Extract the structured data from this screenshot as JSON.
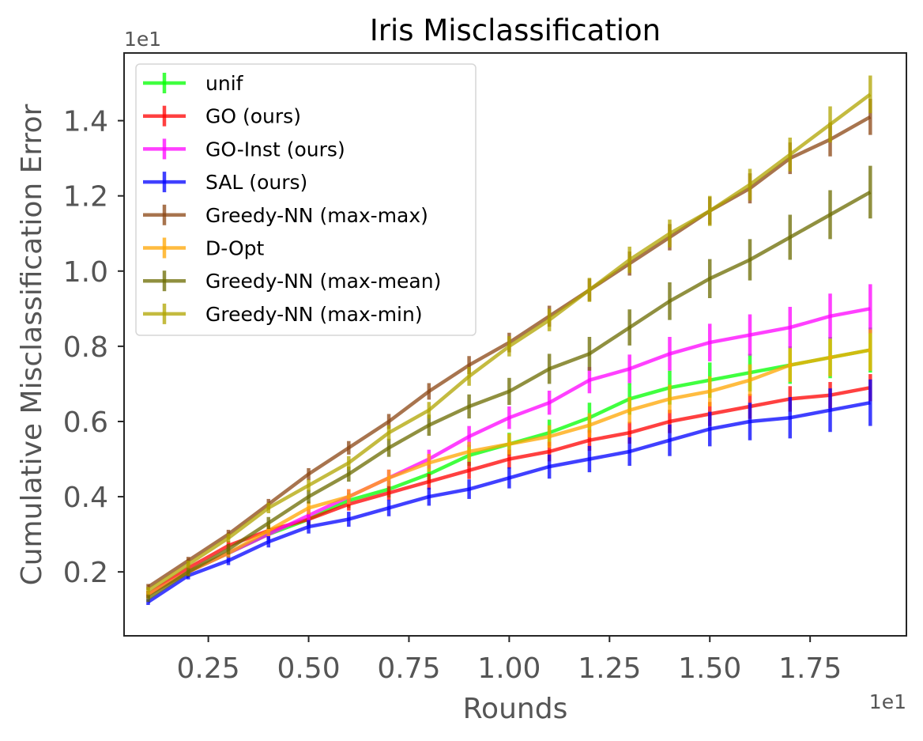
{
  "chart_data": {
    "type": "line",
    "title": "Iris Misclassification",
    "xlabel": "Rounds",
    "ylabel": "Cumulative Misclassification Error",
    "x_offset_text": "1e1",
    "y_offset_text": "1e1",
    "xlim": [
      0.04,
      1.99
    ],
    "ylim": [
      0.03,
      1.58
    ],
    "xticks": [
      0.25,
      0.5,
      0.75,
      1.0,
      1.25,
      1.5,
      1.75
    ],
    "xtick_labels": [
      "0.25",
      "0.50",
      "0.75",
      "1.00",
      "1.25",
      "1.50",
      "1.75"
    ],
    "yticks": [
      0.2,
      0.4,
      0.6,
      0.8,
      1.0,
      1.2,
      1.4
    ],
    "ytick_labels": [
      "0.2",
      "0.4",
      "0.6",
      "0.8",
      "1.0",
      "1.2",
      "1.4"
    ],
    "grid": false,
    "legend_position": "upper-left",
    "x": [
      0.1,
      0.2,
      0.3,
      0.4,
      0.5,
      0.6,
      0.7,
      0.8,
      0.9,
      1.0,
      1.1,
      1.2,
      1.3,
      1.4,
      1.5,
      1.6,
      1.7,
      1.8,
      1.9
    ],
    "series": [
      {
        "name": "unif",
        "color": "#00ff00",
        "values": [
          0.14,
          0.2,
          0.25,
          0.3,
          0.34,
          0.39,
          0.42,
          0.46,
          0.51,
          0.54,
          0.57,
          0.61,
          0.66,
          0.69,
          0.71,
          0.73,
          0.75,
          0.77,
          0.79
        ],
        "errors": [
          0.01,
          0.01,
          0.012,
          0.015,
          0.017,
          0.02,
          0.022,
          0.025,
          0.028,
          0.03,
          0.035,
          0.04,
          0.042,
          0.045,
          0.047,
          0.05,
          0.05,
          0.055,
          0.06
        ]
      },
      {
        "name": "GO (ours)",
        "color": "#ff0000",
        "values": [
          0.14,
          0.21,
          0.27,
          0.31,
          0.34,
          0.38,
          0.41,
          0.44,
          0.47,
          0.5,
          0.52,
          0.55,
          0.57,
          0.6,
          0.62,
          0.64,
          0.66,
          0.67,
          0.69
        ],
        "errors": [
          0.01,
          0.01,
          0.012,
          0.013,
          0.015,
          0.017,
          0.019,
          0.021,
          0.023,
          0.025,
          0.026,
          0.028,
          0.029,
          0.031,
          0.032,
          0.033,
          0.034,
          0.035,
          0.036
        ]
      },
      {
        "name": "GO-Inst (ours)",
        "color": "#ff00ff",
        "values": [
          0.14,
          0.2,
          0.25,
          0.3,
          0.35,
          0.4,
          0.45,
          0.5,
          0.56,
          0.61,
          0.65,
          0.71,
          0.74,
          0.78,
          0.81,
          0.83,
          0.85,
          0.88,
          0.9
        ],
        "errors": [
          0.01,
          0.01,
          0.012,
          0.014,
          0.017,
          0.02,
          0.022,
          0.025,
          0.028,
          0.03,
          0.032,
          0.035,
          0.038,
          0.045,
          0.05,
          0.055,
          0.055,
          0.06,
          0.065
        ]
      },
      {
        "name": "SAL (ours)",
        "color": "#0000ff",
        "values": [
          0.12,
          0.19,
          0.23,
          0.28,
          0.32,
          0.34,
          0.37,
          0.4,
          0.42,
          0.45,
          0.48,
          0.5,
          0.52,
          0.55,
          0.58,
          0.6,
          0.61,
          0.63,
          0.65
        ],
        "errors": [
          0.008,
          0.01,
          0.012,
          0.015,
          0.018,
          0.02,
          0.022,
          0.024,
          0.026,
          0.028,
          0.032,
          0.035,
          0.038,
          0.042,
          0.046,
          0.05,
          0.055,
          0.058,
          0.062
        ]
      },
      {
        "name": "Greedy-NN (max-max)",
        "color": "#8b4513",
        "values": [
          0.16,
          0.23,
          0.3,
          0.38,
          0.46,
          0.53,
          0.6,
          0.68,
          0.75,
          0.81,
          0.88,
          0.95,
          1.02,
          1.09,
          1.16,
          1.22,
          1.3,
          1.35,
          1.41
        ],
        "errors": [
          0.008,
          0.01,
          0.012,
          0.014,
          0.016,
          0.018,
          0.02,
          0.022,
          0.024,
          0.026,
          0.028,
          0.03,
          0.032,
          0.035,
          0.037,
          0.04,
          0.042,
          0.045,
          0.048
        ]
      },
      {
        "name": "D-Opt",
        "color": "#ffa500",
        "values": [
          0.14,
          0.2,
          0.25,
          0.31,
          0.37,
          0.4,
          0.45,
          0.49,
          0.52,
          0.54,
          0.56,
          0.59,
          0.63,
          0.66,
          0.68,
          0.71,
          0.75,
          0.77,
          0.79
        ],
        "errors": [
          0.01,
          0.01,
          0.012,
          0.015,
          0.017,
          0.02,
          0.022,
          0.024,
          0.026,
          0.028,
          0.03,
          0.032,
          0.035,
          0.038,
          0.04,
          0.042,
          0.045,
          0.05,
          0.055
        ]
      },
      {
        "name": "Greedy-NN (max-mean)",
        "color": "#6b6b00",
        "values": [
          0.13,
          0.2,
          0.26,
          0.33,
          0.4,
          0.46,
          0.53,
          0.59,
          0.64,
          0.68,
          0.74,
          0.78,
          0.85,
          0.92,
          0.98,
          1.03,
          1.09,
          1.15,
          1.21
        ],
        "errors": [
          0.01,
          0.012,
          0.014,
          0.016,
          0.018,
          0.02,
          0.024,
          0.028,
          0.032,
          0.036,
          0.04,
          0.045,
          0.048,
          0.05,
          0.052,
          0.055,
          0.06,
          0.065,
          0.07
        ]
      },
      {
        "name": "Greedy-NN (max-min)",
        "color": "#b0a400",
        "values": [
          0.15,
          0.22,
          0.29,
          0.37,
          0.43,
          0.49,
          0.57,
          0.63,
          0.72,
          0.8,
          0.87,
          0.95,
          1.03,
          1.1,
          1.16,
          1.23,
          1.31,
          1.39,
          1.47
        ],
        "errors": [
          0.01,
          0.01,
          0.012,
          0.014,
          0.016,
          0.018,
          0.02,
          0.022,
          0.025,
          0.027,
          0.03,
          0.032,
          0.035,
          0.037,
          0.04,
          0.042,
          0.045,
          0.048,
          0.05
        ]
      }
    ]
  }
}
